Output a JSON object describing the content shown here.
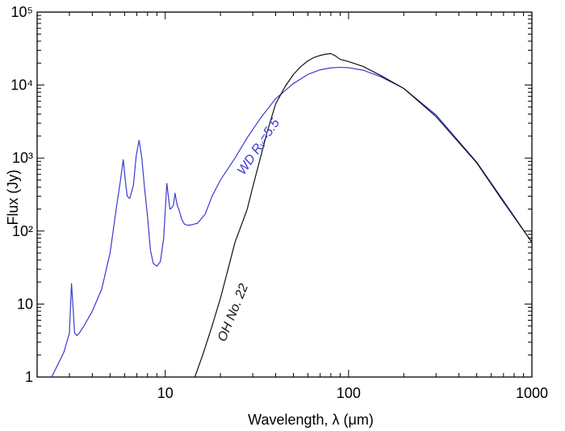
{
  "chart_data": {
    "type": "line",
    "title": "",
    "xlabel": "Wavelength,   λ (μm)",
    "ylabel": "Flux  (Jy)",
    "xscale": "log",
    "yscale": "log",
    "xlim": [
      2,
      1000
    ],
    "ylim": [
      1,
      100000
    ],
    "grid": false,
    "legend": "none",
    "x_tick_labels": [
      "10",
      "100",
      "1000"
    ],
    "x_tick_values": [
      10,
      100,
      1000
    ],
    "y_tick_labels": [
      "1",
      "10",
      "10²",
      "10³",
      "10⁴",
      "10⁵"
    ],
    "y_tick_values": [
      1,
      10,
      100,
      1000,
      10000,
      100000
    ],
    "series": [
      {
        "annotation": "WD Rᵥ=5.5",
        "color": "#3a3ad0",
        "x": [
          2.4,
          2.6,
          2.8,
          3.0,
          3.08,
          3.15,
          3.2,
          3.3,
          3.4,
          3.6,
          4.0,
          4.5,
          5.0,
          5.4,
          5.7,
          5.9,
          6.05,
          6.2,
          6.4,
          6.7,
          6.95,
          7.2,
          7.45,
          7.7,
          8.0,
          8.3,
          8.6,
          9.0,
          9.4,
          9.8,
          10.2,
          10.6,
          10.9,
          11.1,
          11.3,
          11.6,
          12.0,
          12.3,
          12.7,
          13.2,
          14.0,
          15.0,
          16.5,
          18.0,
          20.0,
          24.0,
          28.0,
          33.0,
          40.0,
          50.0,
          60.0,
          70.0,
          80.0,
          90.0,
          100.0,
          120.0,
          150.0,
          200.0,
          300.0,
          500.0,
          700.0,
          1000.0
        ],
        "values": [
          1.0,
          1.5,
          2.2,
          4.0,
          19.0,
          8.0,
          4.0,
          3.7,
          4.0,
          5.0,
          8.0,
          16.0,
          50.0,
          200.0,
          500.0,
          950.0,
          500.0,
          300.0,
          280.0,
          420.0,
          1100.0,
          1750.0,
          1000.0,
          400.0,
          160.0,
          55.0,
          36.0,
          33.0,
          38.0,
          80.0,
          450.0,
          200.0,
          210.0,
          230.0,
          330.0,
          230.0,
          180.0,
          145.0,
          125.0,
          120.0,
          122.0,
          128.0,
          170.0,
          300.0,
          500.0,
          1000.0,
          1900.0,
          3500.0,
          6500.0,
          10500.0,
          14000.0,
          16200.0,
          17200.0,
          17500.0,
          17300.0,
          16000.0,
          13000.0,
          9000.0,
          3900.0,
          880.0,
          260.0,
          70.0
        ]
      },
      {
        "annotation": "OH  No. 22",
        "color": "#111111",
        "x": [
          14.5,
          16.0,
          18.0,
          20.0,
          22.0,
          24.0,
          26.0,
          28.0,
          30.0,
          33.0,
          36.0,
          40.0,
          45.0,
          50.0,
          55.0,
          60.0,
          65.0,
          70.0,
          75.0,
          80.0,
          85.0,
          90.0,
          100.0,
          120.0,
          150.0,
          200.0,
          300.0,
          500.0,
          700.0,
          1000.0
        ],
        "values": [
          1.0,
          2.0,
          5.0,
          12.0,
          30.0,
          70.0,
          120.0,
          200.0,
          400.0,
          1000.0,
          2300.0,
          5500.0,
          9500.0,
          14000.0,
          18000.0,
          21500.0,
          24000.0,
          25500.0,
          26500.0,
          27000.0,
          25000.0,
          22500.0,
          21000.0,
          18000.0,
          13500.0,
          9000.0,
          3700.0,
          860.0,
          250.0,
          70.0
        ]
      }
    ]
  }
}
